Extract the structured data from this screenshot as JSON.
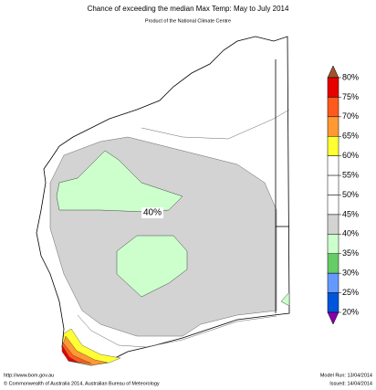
{
  "title": "Chance of exceeding the median Max Temp: May to July 2014",
  "subtitle": "Product of the National Climate Centre",
  "annotation": "40%",
  "colorbar": {
    "labels": [
      "80%",
      "75%",
      "70%",
      "65%",
      "60%",
      "55%",
      "50%",
      "45%",
      "40%",
      "35%",
      "30%",
      "25%",
      "20%"
    ],
    "top_color": "#a0522d",
    "band_colors": [
      "#e60000",
      "#ff5a1e",
      "#ff9933",
      "#ffff33",
      "#ffffff",
      "#ffffff",
      "#ffffff",
      "#d3d3d3",
      "#ccffcc",
      "#66cc66",
      "#6699ff",
      "#0055dd"
    ],
    "bottom_color": "#8800aa"
  },
  "footer": {
    "url": "http://www.bom.gov.au",
    "copyright": "©  Commonwealth of Australia 2014, Australian Bureau of Meteorology",
    "model_run": "Model Run: 13/04/2014",
    "issued": "Issued: 14/04/2014"
  }
}
